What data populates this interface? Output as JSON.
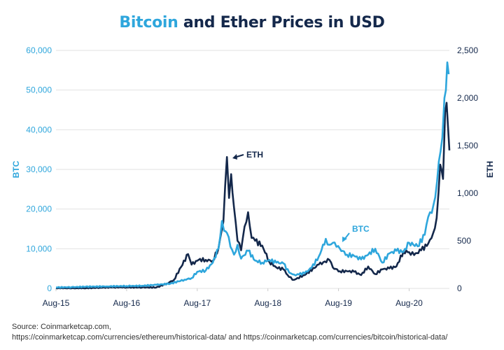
{
  "title": {
    "accent": "Bitcoin",
    "rest": " and Ether Prices in USD"
  },
  "colors": {
    "btc": "#2ea6dc",
    "eth": "#14284b",
    "grid": "#e2e2e2",
    "btc_axis_text": "#2ea6dc",
    "eth_axis_text": "#14284b"
  },
  "source": {
    "line1": "Source: Coinmarketcap.com,",
    "line2": "https://coinmarketcap.com/currencies/ethereum/historical-data/ and https://coinmarketcap.com/currencies/bitcoin/historical-data/"
  },
  "chart_data": {
    "type": "line",
    "title": "Bitcoin and Ether Prices in USD",
    "xlabel": "",
    "x_tick_labels": [
      "Aug-15",
      "Aug-16",
      "Aug-17",
      "Aug-18",
      "Aug-19",
      "Aug-20"
    ],
    "x_range": [
      2015.58,
      2021.15
    ],
    "y_left": {
      "label": "BTC",
      "range": [
        0,
        60000
      ],
      "ticks": [
        0,
        10000,
        20000,
        30000,
        40000,
        50000,
        60000
      ],
      "tick_labels": [
        "0",
        "10,000",
        "20,000",
        "30,000",
        "40,000",
        "50,000",
        "60,000"
      ]
    },
    "y_right": {
      "label": "ETH",
      "range": [
        0,
        2500
      ],
      "ticks": [
        0,
        500,
        1000,
        1500,
        2000,
        2500
      ],
      "tick_labels": [
        "0",
        "500",
        "1,000",
        "1,500",
        "2,000",
        "2,500"
      ]
    },
    "grid": true,
    "annotations": [
      {
        "text": "ETH",
        "series": "ETH",
        "x": 2018.04,
        "y_axis": "right",
        "y": 1400
      },
      {
        "text": "BTC",
        "series": "BTC",
        "x": 2019.55,
        "y_axis": "left",
        "y": 11500
      }
    ],
    "series": [
      {
        "name": "BTC",
        "axis": "left",
        "x": [
          2015.58,
          2015.8,
          2016.0,
          2016.3,
          2016.58,
          2016.8,
          2017.0,
          2017.2,
          2017.4,
          2017.5,
          2017.58,
          2017.7,
          2017.8,
          2017.88,
          2017.93,
          2017.96,
          2018.0,
          2018.05,
          2018.1,
          2018.15,
          2018.2,
          2018.3,
          2018.4,
          2018.5,
          2018.6,
          2018.7,
          2018.8,
          2018.88,
          2018.95,
          2019.0,
          2019.1,
          2019.2,
          2019.3,
          2019.4,
          2019.45,
          2019.5,
          2019.55,
          2019.6,
          2019.7,
          2019.8,
          2019.9,
          2020.0,
          2020.1,
          2020.2,
          2020.3,
          2020.4,
          2020.5,
          2020.58,
          2020.7,
          2020.8,
          2020.85,
          2020.9,
          2020.95,
          2021.0,
          2021.05,
          2021.08,
          2021.1,
          2021.12,
          2021.14
        ],
        "y": [
          250,
          300,
          420,
          500,
          600,
          650,
          900,
          1200,
          2200,
          2600,
          4200,
          4500,
          6500,
          10000,
          17000,
          14500,
          14000,
          10500,
          8500,
          11000,
          7500,
          9500,
          7000,
          6500,
          7200,
          6500,
          6300,
          4000,
          3500,
          3600,
          3800,
          5200,
          8000,
          12500,
          11000,
          11500,
          10500,
          10000,
          8500,
          8200,
          7300,
          8500,
          10000,
          6500,
          8800,
          9500,
          9200,
          11500,
          10600,
          13500,
          18000,
          19000,
          23000,
          32000,
          38000,
          48000,
          50000,
          57000,
          54000
        ]
      },
      {
        "name": "ETH",
        "axis": "right",
        "x": [
          2015.58,
          2015.8,
          2016.0,
          2016.2,
          2016.4,
          2016.58,
          2016.8,
          2017.0,
          2017.15,
          2017.25,
          2017.45,
          2017.5,
          2017.6,
          2017.7,
          2017.8,
          2017.88,
          2017.95,
          2018.0,
          2018.03,
          2018.06,
          2018.1,
          2018.15,
          2018.2,
          2018.25,
          2018.3,
          2018.35,
          2018.4,
          2018.5,
          2018.6,
          2018.7,
          2018.8,
          2018.88,
          2018.95,
          2019.0,
          2019.1,
          2019.3,
          2019.45,
          2019.5,
          2019.6,
          2019.7,
          2019.8,
          2019.9,
          2020.0,
          2020.1,
          2020.2,
          2020.3,
          2020.4,
          2020.5,
          2020.58,
          2020.65,
          2020.75,
          2020.85,
          2020.92,
          2020.97,
          2021.02,
          2021.06,
          2021.09,
          2021.11,
          2021.13,
          2021.15
        ],
        "y": [
          2,
          1,
          1,
          8,
          12,
          11,
          10,
          10,
          50,
          90,
          360,
          250,
          300,
          300,
          290,
          420,
          700,
          1380,
          950,
          1200,
          850,
          500,
          400,
          650,
          800,
          530,
          500,
          450,
          280,
          220,
          200,
          120,
          90,
          110,
          140,
          250,
          300,
          220,
          180,
          180,
          175,
          140,
          230,
          150,
          200,
          210,
          230,
          390,
          380,
          350,
          400,
          470,
          580,
          740,
          1300,
          1150,
          1850,
          1950,
          1700,
          1450
        ]
      }
    ]
  }
}
